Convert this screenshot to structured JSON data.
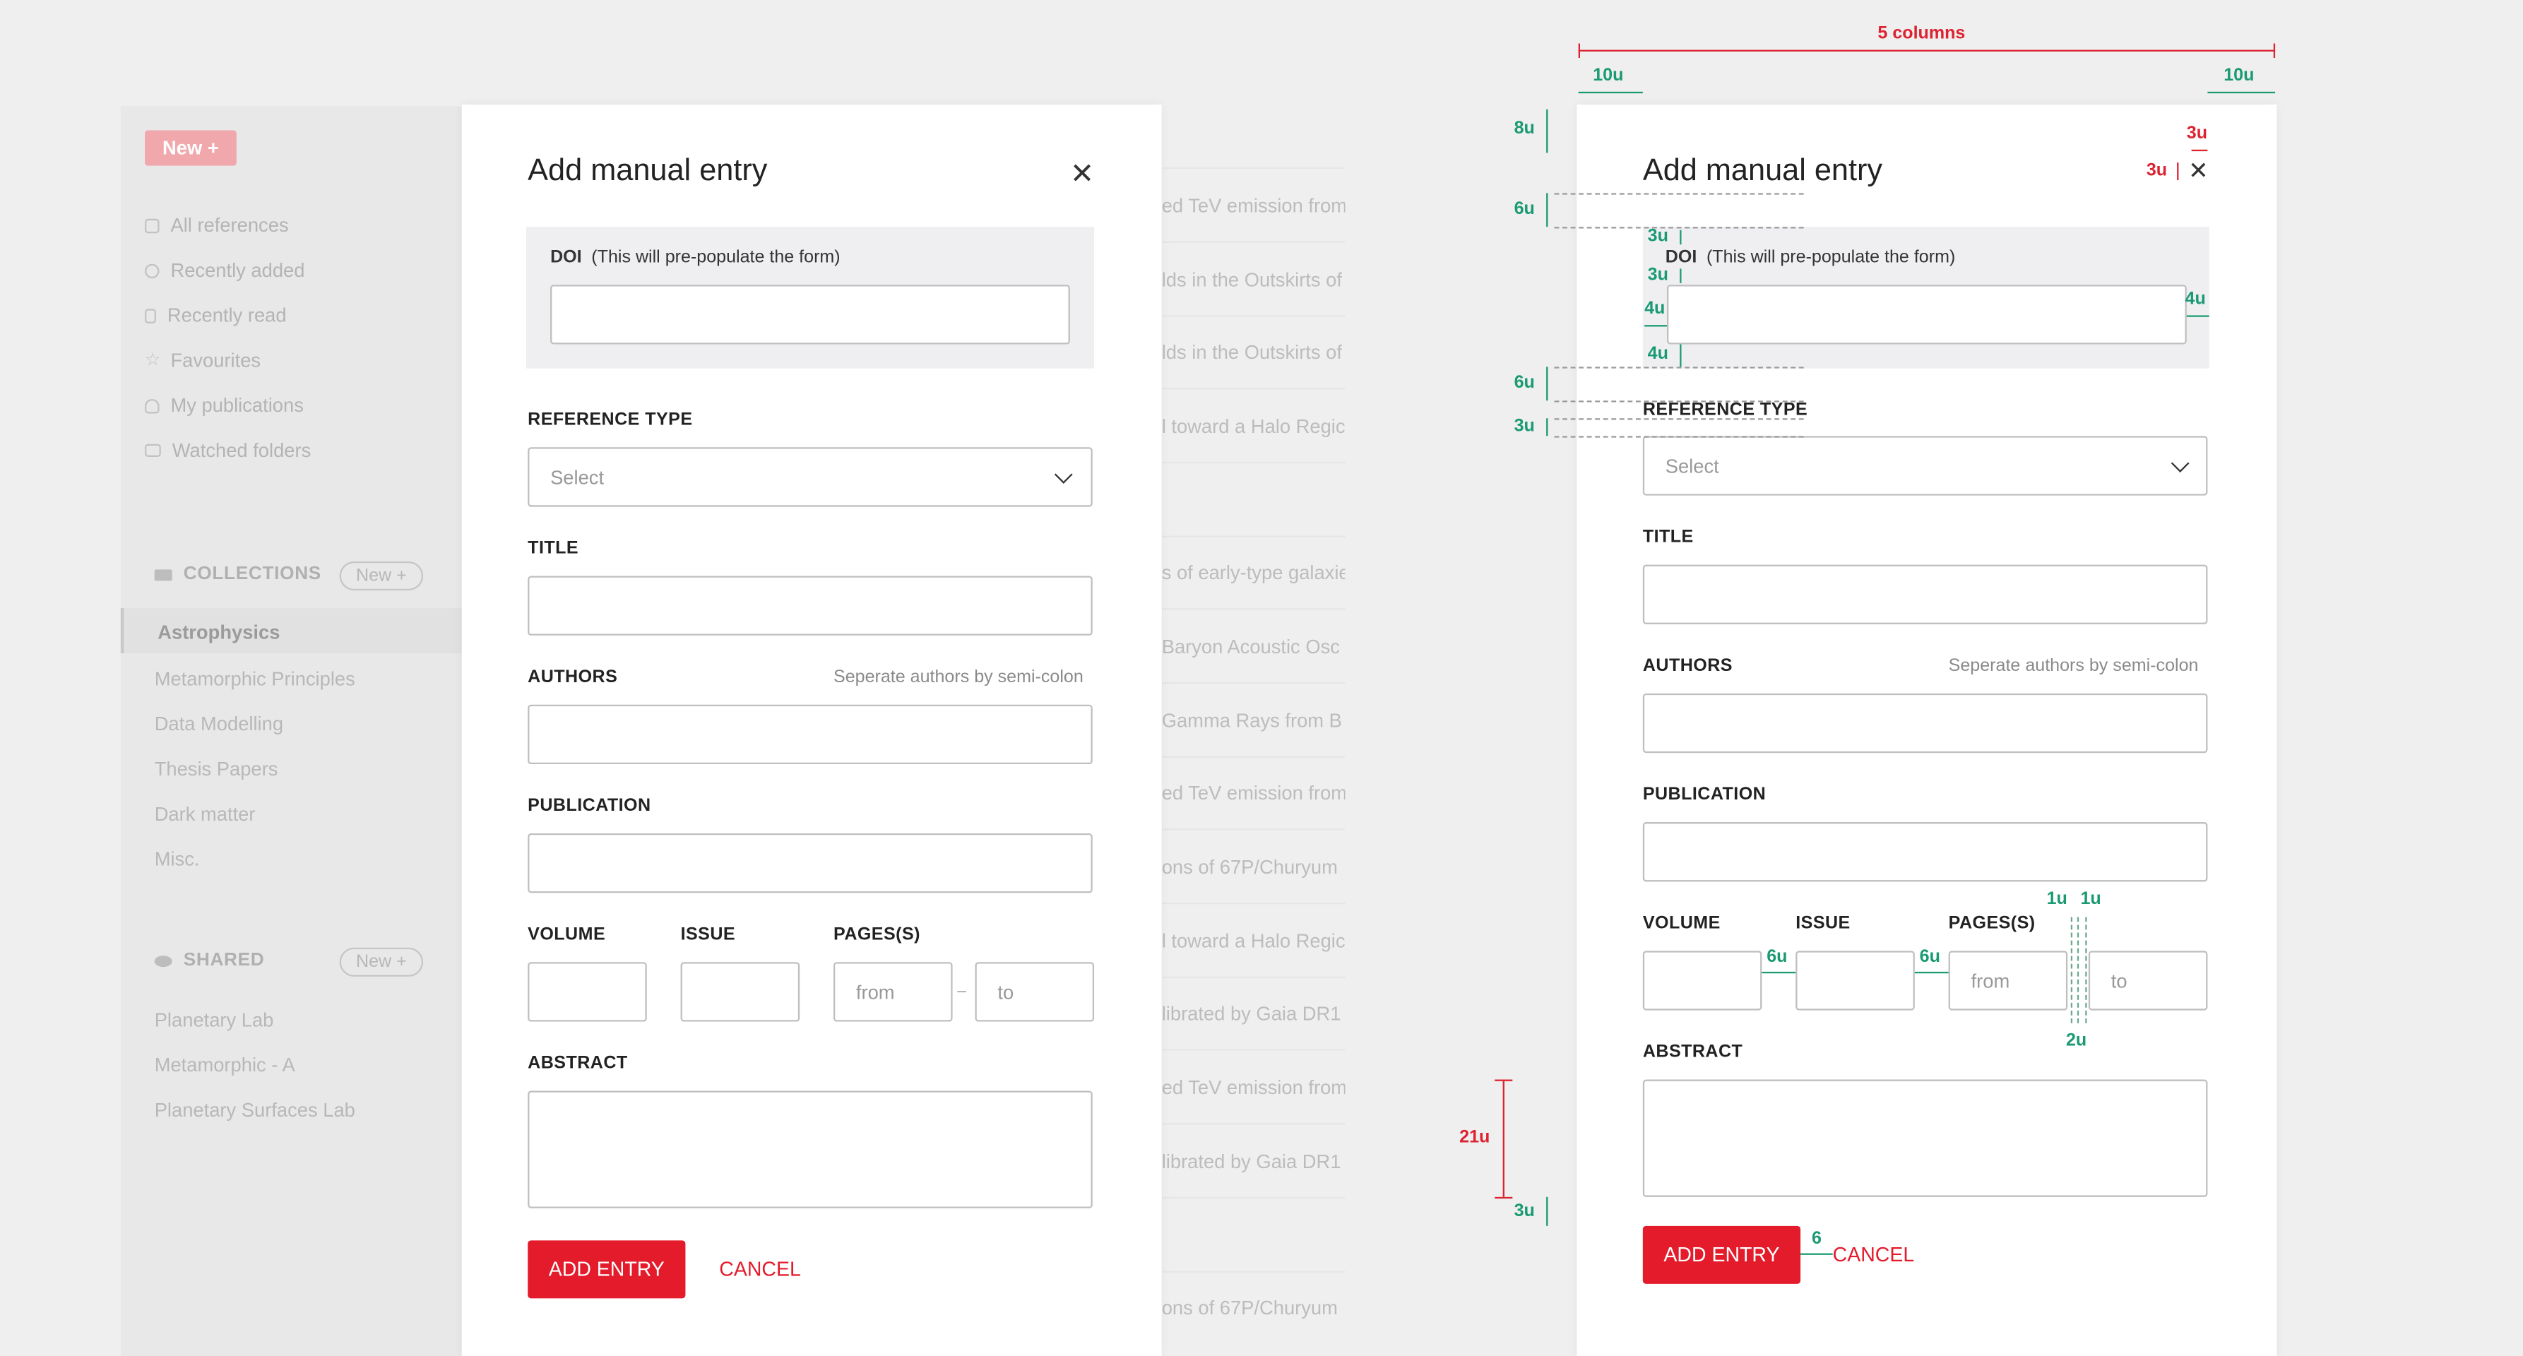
{
  "sidebar": {
    "new_label": "New +",
    "nav": [
      {
        "label": "All references",
        "icon": "layers-icon"
      },
      {
        "label": "Recently added",
        "icon": "clock-icon"
      },
      {
        "label": "Recently read",
        "icon": "bookmark-icon"
      },
      {
        "label": "Favourites",
        "icon": "star-icon"
      },
      {
        "label": "My publications",
        "icon": "person-icon"
      },
      {
        "label": "Watched folders",
        "icon": "folder-icon"
      }
    ],
    "collections_head": "COLLECTIONS",
    "collections_new": "New +",
    "collections": [
      "Astrophysics",
      "Metamorphic Principles",
      "Data Modelling",
      "Thesis Papers",
      "Dark matter",
      "Misc."
    ],
    "shared_head": "SHARED",
    "shared_new": "New +",
    "shared": [
      "Planetary Lab",
      "Metamorphic - A",
      "Planetary Surfaces Lab"
    ]
  },
  "list": [
    "ed TeV emission from",
    "lds in the Outskirts of",
    "lds in the Outskirts of",
    "l toward a Halo Regic",
    "s of early-type galaxie",
    "Baryon Acoustic Osc",
    "Gamma Rays from B",
    "ed TeV emission from",
    "ons of 67P/Churyum",
    "l toward a Halo Regic",
    "librated by Gaia DR1",
    "ed TeV emission from",
    "librated by Gaia DR1",
    "ons of 67P/Churyum"
  ],
  "modal": {
    "title": "Add manual entry",
    "close": "✕",
    "doi_label": "DOI",
    "doi_hint": "(This will pre-populate the form)",
    "reference_type_label": "REFERENCE TYPE",
    "reference_type_value": "Select",
    "title_label": "TITLE",
    "authors_label": "AUTHORS",
    "authors_hint": "Seperate authors by semi-colon",
    "publication_label": "PUBLICATION",
    "volume_label": "VOLUME",
    "issue_label": "ISSUE",
    "pages_label": "PAGES(S)",
    "pages_from": "from",
    "pages_dash": "–",
    "pages_to": "to",
    "abstract_label": "ABSTRACT",
    "add_button": "ADD ENTRY",
    "cancel_button": "CANCEL"
  },
  "annotations": {
    "columns": "5 columns",
    "u10": "10u",
    "u8": "8u",
    "u6": "6u",
    "u3": "3u",
    "u4": "4u",
    "u1": "1u",
    "u2": "2u",
    "u21": "21u",
    "six": "6"
  },
  "colors": {
    "accent": "#e31b2b",
    "annotation_red": "#dd2230",
    "annotation_green": "#1a9a72"
  }
}
